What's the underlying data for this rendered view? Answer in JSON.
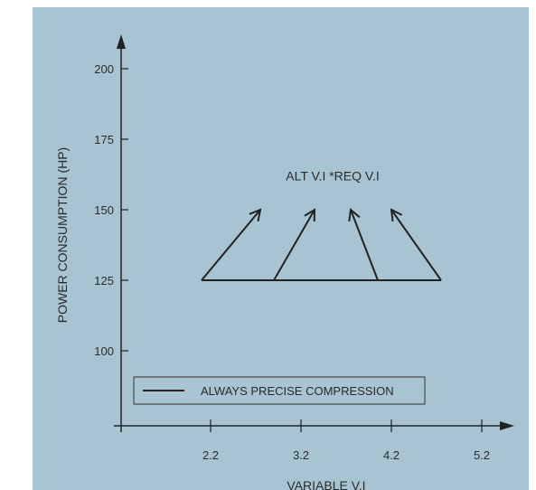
{
  "chart_data": {
    "type": "line",
    "ylabel": "POWER CONSUMPTION (HP)",
    "xlabel": "VARIABLE V.I",
    "y_ticks": [
      100,
      125,
      150,
      175,
      200
    ],
    "x_ticks": [
      2.2,
      3.2,
      4.2,
      5.2
    ],
    "ylim": [
      76,
      214
    ],
    "xlim": [
      1.2,
      5.7
    ],
    "baseline": {
      "y": 125,
      "x_start": 2.1,
      "x_end": 4.75
    },
    "arrows": [
      {
        "from": [
          2.1,
          125
        ],
        "to": [
          2.75,
          150
        ]
      },
      {
        "from": [
          2.9,
          125
        ],
        "to": [
          3.35,
          150
        ]
      },
      {
        "from": [
          4.05,
          125
        ],
        "to": [
          3.75,
          150
        ]
      },
      {
        "from": [
          4.75,
          125
        ],
        "to": [
          4.2,
          150
        ]
      }
    ],
    "annotation": "ALT V.I *REQ V.I",
    "annotation_at": {
      "x": 3.55,
      "y": 162
    },
    "legend": {
      "label": "ALWAYS PRECISE COMPRESSION",
      "placement": "bottom-left"
    },
    "colors": {
      "background": "#a8c4d2",
      "line": "#222222"
    }
  }
}
